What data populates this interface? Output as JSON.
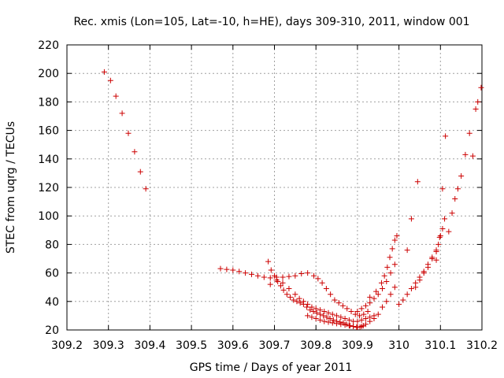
{
  "chart_data": {
    "type": "scatter",
    "title": "Rec. xmis (Lon=105, Lat=-10, h=HE), days 309-310, 2011, window 001",
    "xlabel": "GPS time / Days of year 2011",
    "ylabel": "STEC from uqrg / TECUs",
    "xlim": [
      309.2,
      310.2
    ],
    "ylim": [
      20,
      220
    ],
    "x_ticks": [
      "309.2",
      "309.3",
      "309.4",
      "309.5",
      "309.6",
      "309.7",
      "309.8",
      "309.9",
      "310",
      "310.1",
      "310.2"
    ],
    "y_ticks": [
      "20",
      "40",
      "60",
      "80",
      "100",
      "120",
      "140",
      "160",
      "180",
      "200",
      "220"
    ],
    "grid": true,
    "marker": "plus",
    "color": "#cc0000",
    "points": [
      [
        309.29,
        201
      ],
      [
        309.305,
        195
      ],
      [
        309.318,
        184
      ],
      [
        309.333,
        172
      ],
      [
        309.348,
        158
      ],
      [
        309.363,
        145
      ],
      [
        309.377,
        131
      ],
      [
        309.39,
        119
      ],
      [
        309.57,
        63
      ],
      [
        309.585,
        62.5
      ],
      [
        309.6,
        62
      ],
      [
        309.615,
        61
      ],
      [
        309.63,
        60
      ],
      [
        309.645,
        59
      ],
      [
        309.66,
        58
      ],
      [
        309.675,
        57
      ],
      [
        309.69,
        56.5
      ],
      [
        309.705,
        57
      ],
      [
        309.72,
        57
      ],
      [
        309.735,
        57.5
      ],
      [
        309.75,
        58
      ],
      [
        309.765,
        59.5
      ],
      [
        309.78,
        60
      ],
      [
        309.795,
        58
      ],
      [
        309.805,
        56
      ],
      [
        309.815,
        53
      ],
      [
        309.825,
        49
      ],
      [
        309.835,
        45
      ],
      [
        309.845,
        41
      ],
      [
        309.855,
        39
      ],
      [
        309.865,
        37
      ],
      [
        309.875,
        35
      ],
      [
        309.885,
        33
      ],
      [
        309.895,
        31
      ],
      [
        309.905,
        30
      ],
      [
        309.915,
        31
      ],
      [
        309.925,
        33
      ],
      [
        309.685,
        68
      ],
      [
        309.692,
        62
      ],
      [
        309.7,
        58
      ],
      [
        309.708,
        54
      ],
      [
        309.715,
        51
      ],
      [
        309.722,
        48
      ],
      [
        309.73,
        45
      ],
      [
        309.738,
        43
      ],
      [
        309.746,
        41
      ],
      [
        309.754,
        40
      ],
      [
        309.762,
        39
      ],
      [
        309.77,
        38
      ],
      [
        309.778,
        36
      ],
      [
        309.786,
        34
      ],
      [
        309.794,
        33
      ],
      [
        309.802,
        32
      ],
      [
        309.81,
        31
      ],
      [
        309.818,
        30
      ],
      [
        309.826,
        29
      ],
      [
        309.834,
        28
      ],
      [
        309.842,
        27
      ],
      [
        309.85,
        26
      ],
      [
        309.858,
        25.5
      ],
      [
        309.866,
        25
      ],
      [
        309.874,
        24
      ],
      [
        309.882,
        23
      ],
      [
        309.89,
        22.5
      ],
      [
        309.898,
        22
      ],
      [
        309.906,
        22
      ],
      [
        309.914,
        23
      ],
      [
        309.69,
        52
      ],
      [
        309.705,
        55
      ],
      [
        309.72,
        53
      ],
      [
        309.735,
        49
      ],
      [
        309.75,
        45
      ],
      [
        309.76,
        42
      ],
      [
        309.77,
        40
      ],
      [
        309.78,
        38
      ],
      [
        309.79,
        36
      ],
      [
        309.8,
        35
      ],
      [
        309.81,
        34
      ],
      [
        309.82,
        33
      ],
      [
        309.83,
        32
      ],
      [
        309.84,
        31
      ],
      [
        309.85,
        30
      ],
      [
        309.86,
        29
      ],
      [
        309.87,
        28
      ],
      [
        309.88,
        27
      ],
      [
        309.89,
        26
      ],
      [
        309.9,
        26
      ],
      [
        309.91,
        27
      ],
      [
        309.92,
        28
      ],
      [
        309.93,
        29
      ],
      [
        309.94,
        30
      ],
      [
        309.78,
        30
      ],
      [
        309.79,
        29
      ],
      [
        309.8,
        28
      ],
      [
        309.81,
        27
      ],
      [
        309.82,
        26
      ],
      [
        309.83,
        25.5
      ],
      [
        309.84,
        25
      ],
      [
        309.85,
        24.5
      ],
      [
        309.86,
        24
      ],
      [
        309.87,
        23.5
      ],
      [
        309.88,
        23
      ],
      [
        309.89,
        22.5
      ],
      [
        309.9,
        22
      ],
      [
        309.91,
        22.5
      ],
      [
        309.92,
        24
      ],
      [
        309.93,
        26
      ],
      [
        309.94,
        28
      ],
      [
        309.95,
        31
      ],
      [
        309.9,
        33
      ],
      [
        309.91,
        35
      ],
      [
        309.92,
        37
      ],
      [
        309.93,
        39
      ],
      [
        309.94,
        42
      ],
      [
        309.95,
        45
      ],
      [
        309.96,
        49
      ],
      [
        309.97,
        54
      ],
      [
        309.98,
        60
      ],
      [
        309.99,
        66
      ],
      [
        309.96,
        36
      ],
      [
        309.97,
        40
      ],
      [
        309.98,
        45
      ],
      [
        309.99,
        50
      ],
      [
        309.93,
        43
      ],
      [
        309.945,
        47
      ],
      [
        309.958,
        53
      ],
      [
        309.965,
        58
      ],
      [
        309.972,
        64
      ],
      [
        309.978,
        71
      ],
      [
        309.984,
        77
      ],
      [
        309.99,
        83
      ],
      [
        309.995,
        86
      ],
      [
        310.0,
        38
      ],
      [
        310.01,
        41
      ],
      [
        310.02,
        45
      ],
      [
        310.03,
        49
      ],
      [
        310.04,
        53
      ],
      [
        310.05,
        57
      ],
      [
        310.06,
        61
      ],
      [
        310.07,
        66
      ],
      [
        310.08,
        71
      ],
      [
        310.09,
        76
      ],
      [
        310.02,
        76
      ],
      [
        310.03,
        98
      ],
      [
        310.045,
        124
      ],
      [
        310.04,
        50
      ],
      [
        310.05,
        55
      ],
      [
        310.06,
        60
      ],
      [
        310.07,
        64
      ],
      [
        310.08,
        70
      ],
      [
        310.09,
        75
      ],
      [
        310.095,
        80
      ],
      [
        310.1,
        86
      ],
      [
        310.105,
        91
      ],
      [
        310.11,
        98
      ],
      [
        310.09,
        69
      ],
      [
        310.098,
        85
      ],
      [
        310.105,
        119
      ],
      [
        310.112,
        156
      ],
      [
        310.12,
        89
      ],
      [
        310.128,
        102
      ],
      [
        310.135,
        112
      ],
      [
        310.142,
        119
      ],
      [
        310.15,
        128
      ],
      [
        310.16,
        143
      ],
      [
        310.17,
        158
      ],
      [
        310.178,
        142
      ],
      [
        310.185,
        175
      ],
      [
        310.19,
        180
      ],
      [
        310.198,
        190
      ]
    ]
  }
}
